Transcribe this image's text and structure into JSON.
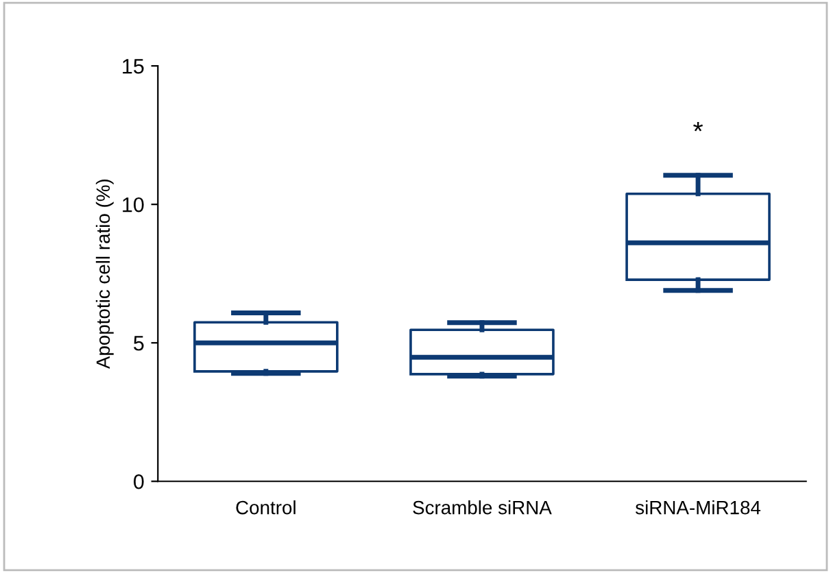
{
  "chart_data": {
    "type": "box",
    "ylabel": "Apoptotic cell ratio (%)",
    "categories": [
      "Control",
      "Scramble siRNA",
      "siRNA-MiR184"
    ],
    "boxes": [
      {
        "low": 3.9,
        "q1": 3.97,
        "median": 5.0,
        "q3": 5.74,
        "high": 6.08
      },
      {
        "low": 3.8,
        "q1": 3.87,
        "median": 4.48,
        "q3": 5.47,
        "high": 5.73
      },
      {
        "low": 6.89,
        "q1": 7.28,
        "median": 8.61,
        "q3": 10.38,
        "high": 11.05
      }
    ],
    "color": "#0d3a73",
    "ylim": [
      0,
      15
    ],
    "yticks": [
      0,
      5,
      10,
      15
    ],
    "grid": false,
    "annotations": [
      "*"
    ]
  }
}
